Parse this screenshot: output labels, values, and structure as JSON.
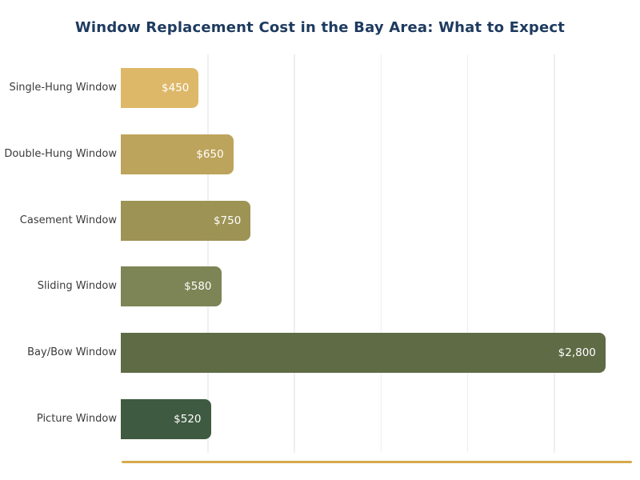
{
  "title": "Window Replacement Cost in the Bay Area: What to Expect",
  "colors": {
    "title": "#1e3a5f",
    "category_label": "#3b3b3b",
    "value_label": "#ffffff",
    "gridline": "#efefef",
    "axis_line": "#d6a94a",
    "background": "#ffffff"
  },
  "chart_data": {
    "type": "bar",
    "orientation": "horizontal",
    "title": "Window Replacement Cost in the Bay Area: What to Expect",
    "categories": [
      "Single-Hung Window",
      "Double-Hung Window",
      "Casement Window",
      "Sliding Window",
      "Bay/Bow Window",
      "Picture Window"
    ],
    "values": [
      450,
      650,
      750,
      580,
      2800,
      520
    ],
    "value_labels": [
      "$450",
      "$650",
      "$750",
      "$580",
      "$2,800",
      "$520"
    ],
    "bar_colors": [
      "#ddb869",
      "#bda45c",
      "#9d9355",
      "#7d8456",
      "#5e6b45",
      "#3e5a40"
    ],
    "xlabel": "",
    "ylabel": "",
    "xlim": [
      0,
      2925
    ],
    "grid": "vertical",
    "gridline_values": [
      500,
      1000,
      1500,
      2000,
      2500
    ],
    "legend": "none",
    "value_label_position": "inside-end"
  }
}
